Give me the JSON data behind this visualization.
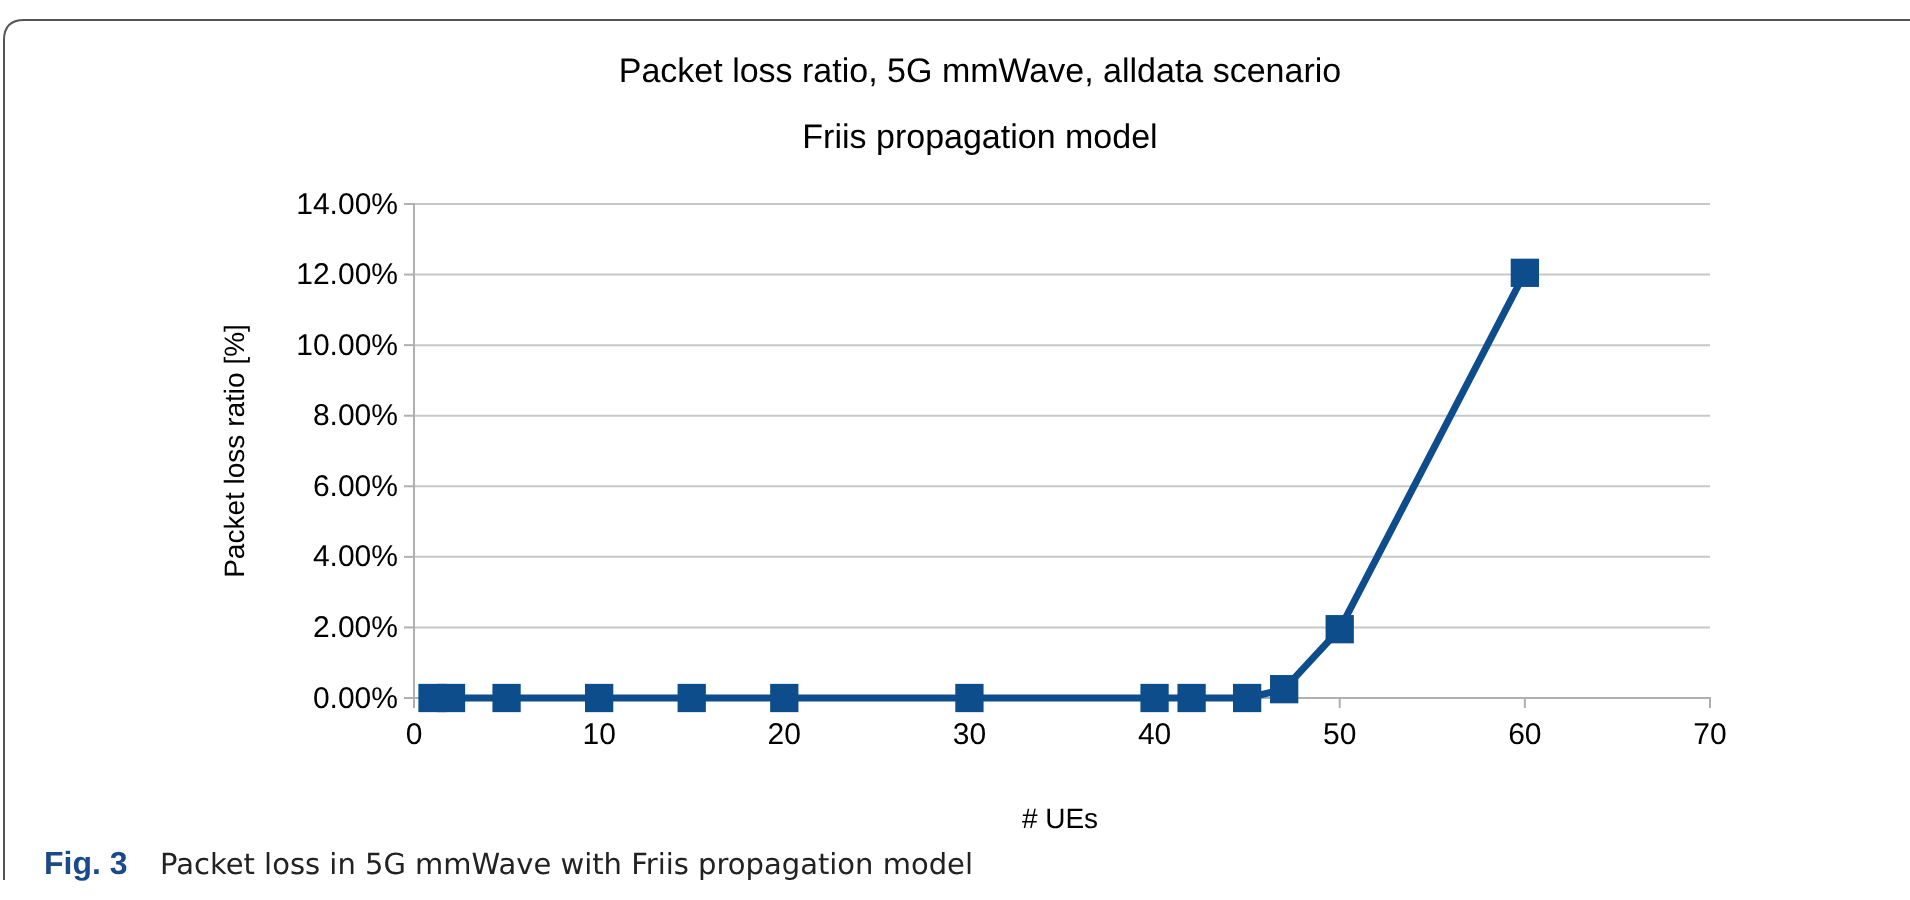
{
  "chart_data": {
    "type": "line",
    "title": "Packet loss ratio, 5G mmWave, alldata scenario",
    "subtitle": "Friis propagation model",
    "xlabel": "# UEs",
    "ylabel": "Packet loss ratio [%]",
    "annotations": [
      "Fig. 3",
      "Packet loss in 5G mmWave with Friis propagation model"
    ],
    "x": [
      1,
      2,
      5,
      10,
      15,
      20,
      30,
      40,
      42,
      45,
      47,
      50,
      60
    ],
    "series": [
      {
        "color": "#0e4d8c",
        "values": [
          0,
          0,
          0,
          0,
          0,
          0,
          0,
          0,
          0,
          0,
          0.25,
          1.95,
          12.05
        ]
      }
    ],
    "xlim": [
      0,
      70
    ],
    "xticks": [
      0,
      10,
      20,
      30,
      40,
      50,
      60,
      70
    ],
    "ylim": [
      0,
      14
    ],
    "yticks": [
      {
        "value": 0,
        "label": "0.00%"
      },
      {
        "value": 2,
        "label": "2.00%"
      },
      {
        "value": 4,
        "label": "4.00%"
      },
      {
        "value": 6,
        "label": "6.00%"
      },
      {
        "value": 8,
        "label": "8.00%"
      },
      {
        "value": 10,
        "label": "10.00%"
      },
      {
        "value": 12,
        "label": "12.00%"
      },
      {
        "value": 14,
        "label": "14.00%"
      }
    ],
    "grid": "y",
    "marker": "square",
    "line_style": "solid"
  }
}
